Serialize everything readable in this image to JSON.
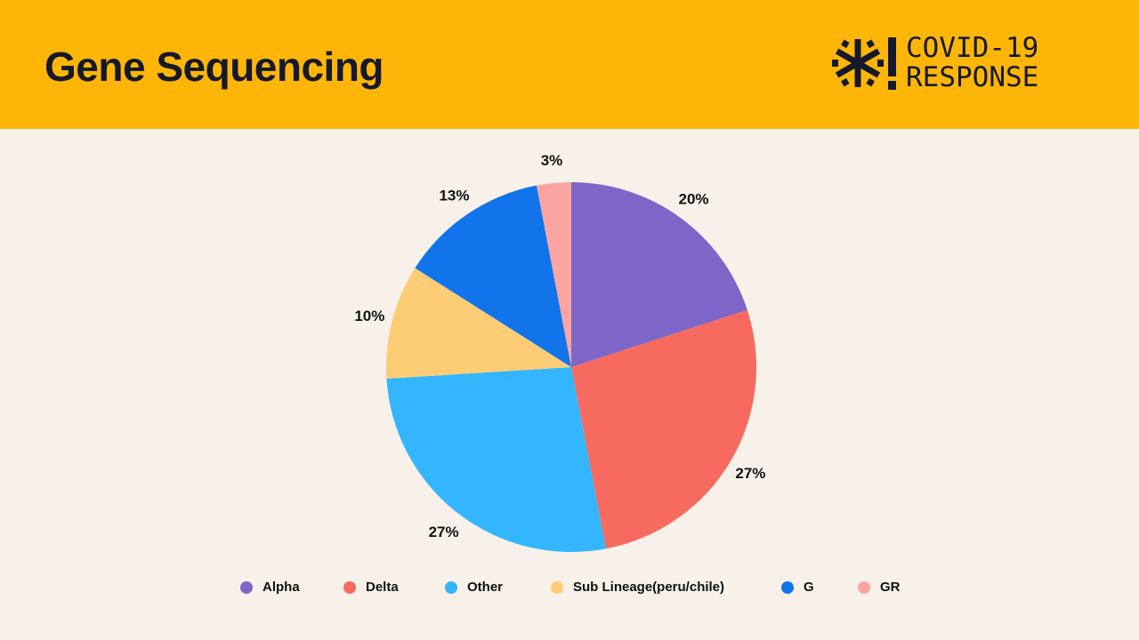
{
  "header": {
    "title": "Gene Sequencing",
    "logo_line1": "COVID-19",
    "logo_line2": "RESPONSE"
  },
  "chart_data": {
    "type": "pie",
    "title": "Gene Sequencing",
    "start_angle": "top, clockwise",
    "legend_position": "bottom",
    "slices": [
      {
        "label": "Alpha",
        "value": 20,
        "display": "20%",
        "color": "#7e66c8"
      },
      {
        "label": "Delta",
        "value": 27,
        "display": "27%",
        "color": "#f76a60"
      },
      {
        "label": "Other",
        "value": 27,
        "display": "27%",
        "color": "#33b6fd"
      },
      {
        "label": "Sub Lineage(peru/chile)",
        "value": 10,
        "display": "10%",
        "color": "#fccd75"
      },
      {
        "label": "G",
        "value": 13,
        "display": "13%",
        "color": "#1274ea"
      },
      {
        "label": "GR",
        "value": 3,
        "display": "3%",
        "color": "#fba5a3"
      }
    ]
  }
}
